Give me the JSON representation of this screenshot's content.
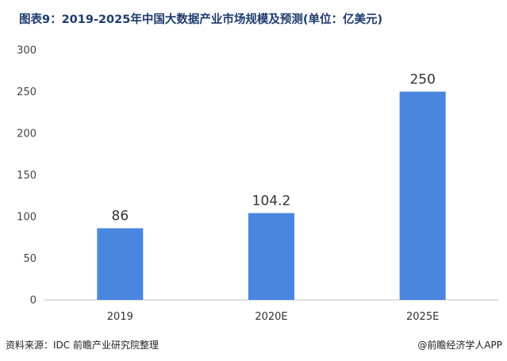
{
  "title": "图表9：2019-2025年中国大数据产业市场规模及预测(单位：亿美元)",
  "footer": {
    "source": "资料来源：IDC  前瞻产业研究院整理",
    "credit": "@前瞻经济学人APP"
  },
  "chart_data": {
    "type": "bar",
    "categories": [
      "2019",
      "2020E",
      "2025E"
    ],
    "values": [
      86,
      104.2,
      250
    ],
    "value_labels": [
      "86",
      "104.2",
      "250"
    ],
    "ylim": [
      0,
      300
    ],
    "yticks": [
      0,
      50,
      100,
      150,
      200,
      250,
      300
    ],
    "bar_color": "#4a86e0",
    "grid": false
  }
}
